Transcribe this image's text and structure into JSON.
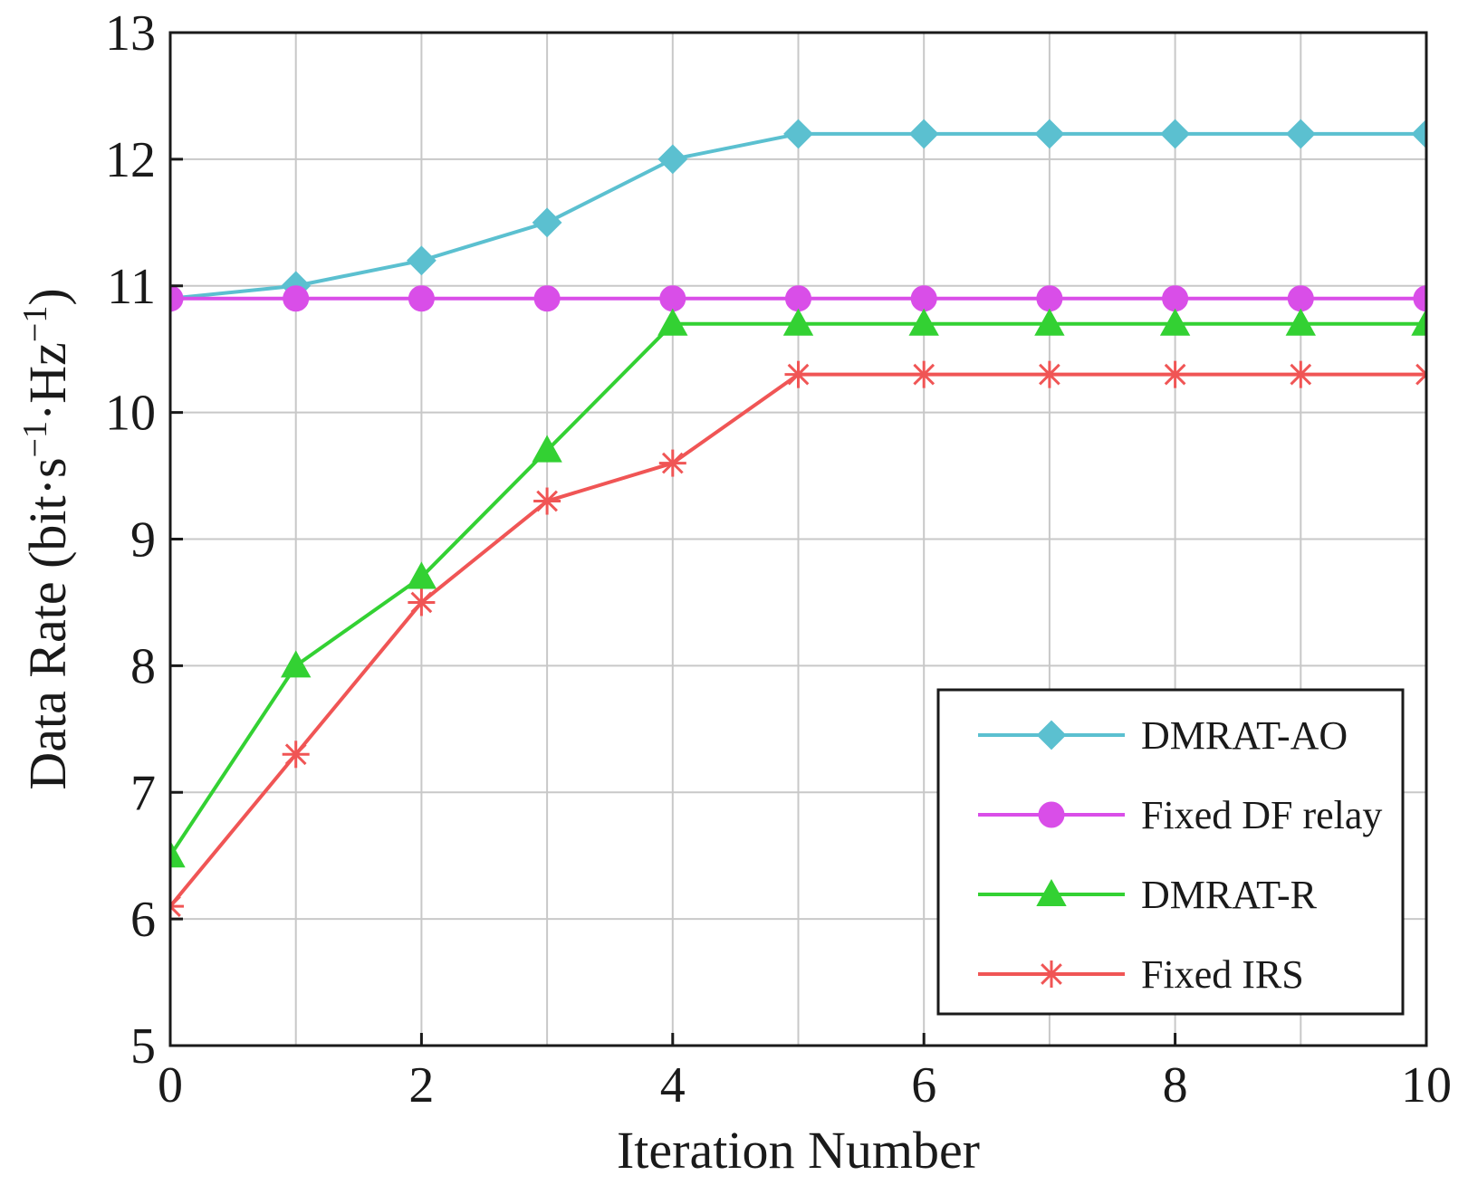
{
  "chart_data": {
    "type": "line",
    "xlabel": "Iteration Number",
    "ylabel_parts": {
      "prefix": "Data Rate (bit·s",
      "sup1": "−1",
      "middle": "·Hz",
      "sup2": "−1",
      "suffix": ")"
    },
    "xlim": [
      0,
      10
    ],
    "ylim": [
      5,
      13
    ],
    "x_ticks": [
      0,
      2,
      4,
      6,
      8,
      10
    ],
    "y_ticks": [
      5,
      6,
      7,
      8,
      9,
      10,
      11,
      12,
      13
    ],
    "grid": true,
    "legend_position": "bottom-right",
    "x": [
      0,
      1,
      2,
      3,
      4,
      5,
      6,
      7,
      8,
      9,
      10
    ],
    "series": [
      {
        "name": "DMRAT-AO",
        "color": "#5bc0d0",
        "marker": "diamond",
        "values": [
          10.9,
          11.0,
          11.2,
          11.5,
          12.0,
          12.2,
          12.2,
          12.2,
          12.2,
          12.2,
          12.2
        ]
      },
      {
        "name": "Fixed DF relay",
        "color": "#d94ee8",
        "marker": "circle",
        "values": [
          10.9,
          10.9,
          10.9,
          10.9,
          10.9,
          10.9,
          10.9,
          10.9,
          10.9,
          10.9,
          10.9
        ]
      },
      {
        "name": "DMRAT-R",
        "color": "#33d133",
        "marker": "triangle",
        "values": [
          6.5,
          8.0,
          8.7,
          9.7,
          10.7,
          10.7,
          10.7,
          10.7,
          10.7,
          10.7,
          10.7
        ]
      },
      {
        "name": "Fixed IRS",
        "color": "#f05555",
        "marker": "asterisk",
        "values": [
          6.1,
          7.3,
          8.5,
          9.3,
          9.6,
          10.3,
          10.3,
          10.3,
          10.3,
          10.3,
          10.3
        ]
      }
    ]
  }
}
